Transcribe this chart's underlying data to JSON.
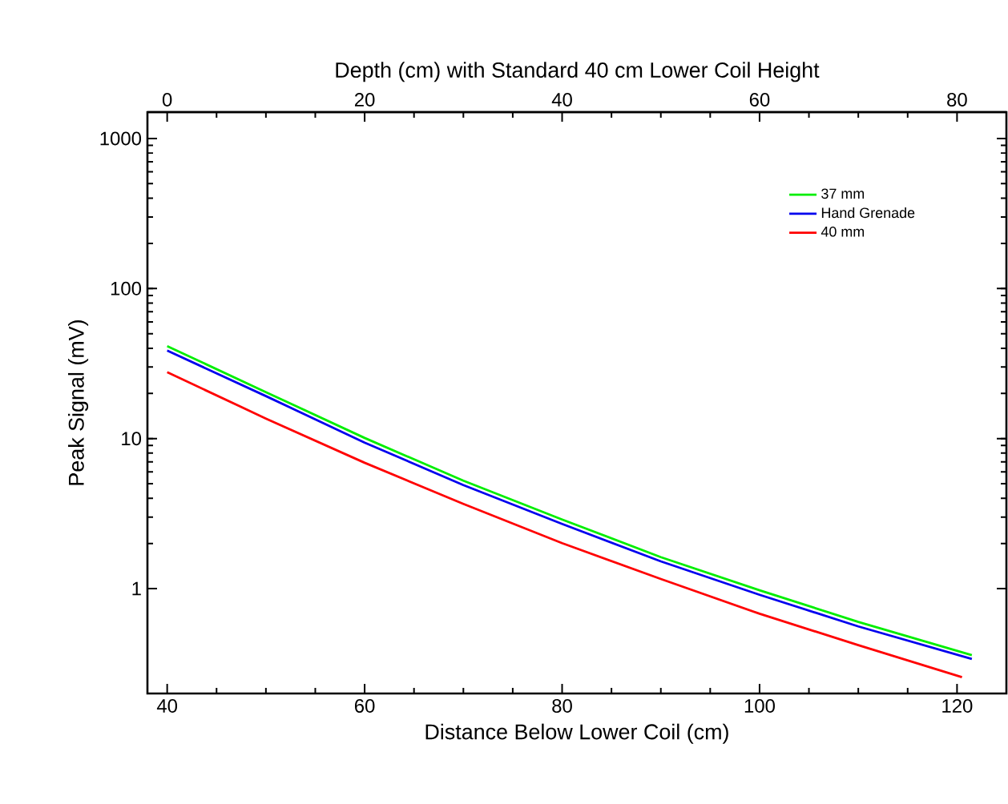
{
  "chart_data": {
    "type": "line",
    "xlabel": "Distance Below Lower Coil (cm)",
    "ylabel": "Peak Signal (mV)",
    "x2label": "Depth (cm) with Standard 40 cm Lower Coil Height",
    "xlim": [
      38,
      125
    ],
    "xticks": [
      40,
      60,
      80,
      100,
      120
    ],
    "x2lim": [
      -2,
      85
    ],
    "x2ticks": [
      0,
      20,
      40,
      60,
      80
    ],
    "ylim": [
      0.2,
      1500
    ],
    "yticks": [
      1,
      10,
      100,
      1000
    ],
    "log": "y",
    "grid": false,
    "legend": "top right",
    "series": [
      {
        "name": "37 mm",
        "color": "#00ee00",
        "x": [
          40,
          50,
          60,
          70,
          80,
          90,
          100,
          110,
          121.5
        ],
        "values": [
          41.3,
          20.4,
          10.1,
          5.24,
          2.89,
          1.62,
          0.975,
          0.6,
          0.36
        ]
      },
      {
        "name": "Hand Grenade",
        "color": "#0000ee",
        "x": [
          40,
          50,
          60,
          70,
          80,
          90,
          100,
          110,
          121.5
        ],
        "values": [
          38.6,
          19.2,
          9.4,
          4.9,
          2.7,
          1.52,
          0.91,
          0.56,
          0.34
        ]
      },
      {
        "name": "40 mm",
        "color": "#ff0000",
        "x": [
          40,
          50,
          60,
          70,
          80,
          90,
          100,
          110,
          120.5
        ],
        "values": [
          27.7,
          13.6,
          6.9,
          3.67,
          2.01,
          1.16,
          0.68,
          0.42,
          0.257
        ]
      }
    ]
  }
}
